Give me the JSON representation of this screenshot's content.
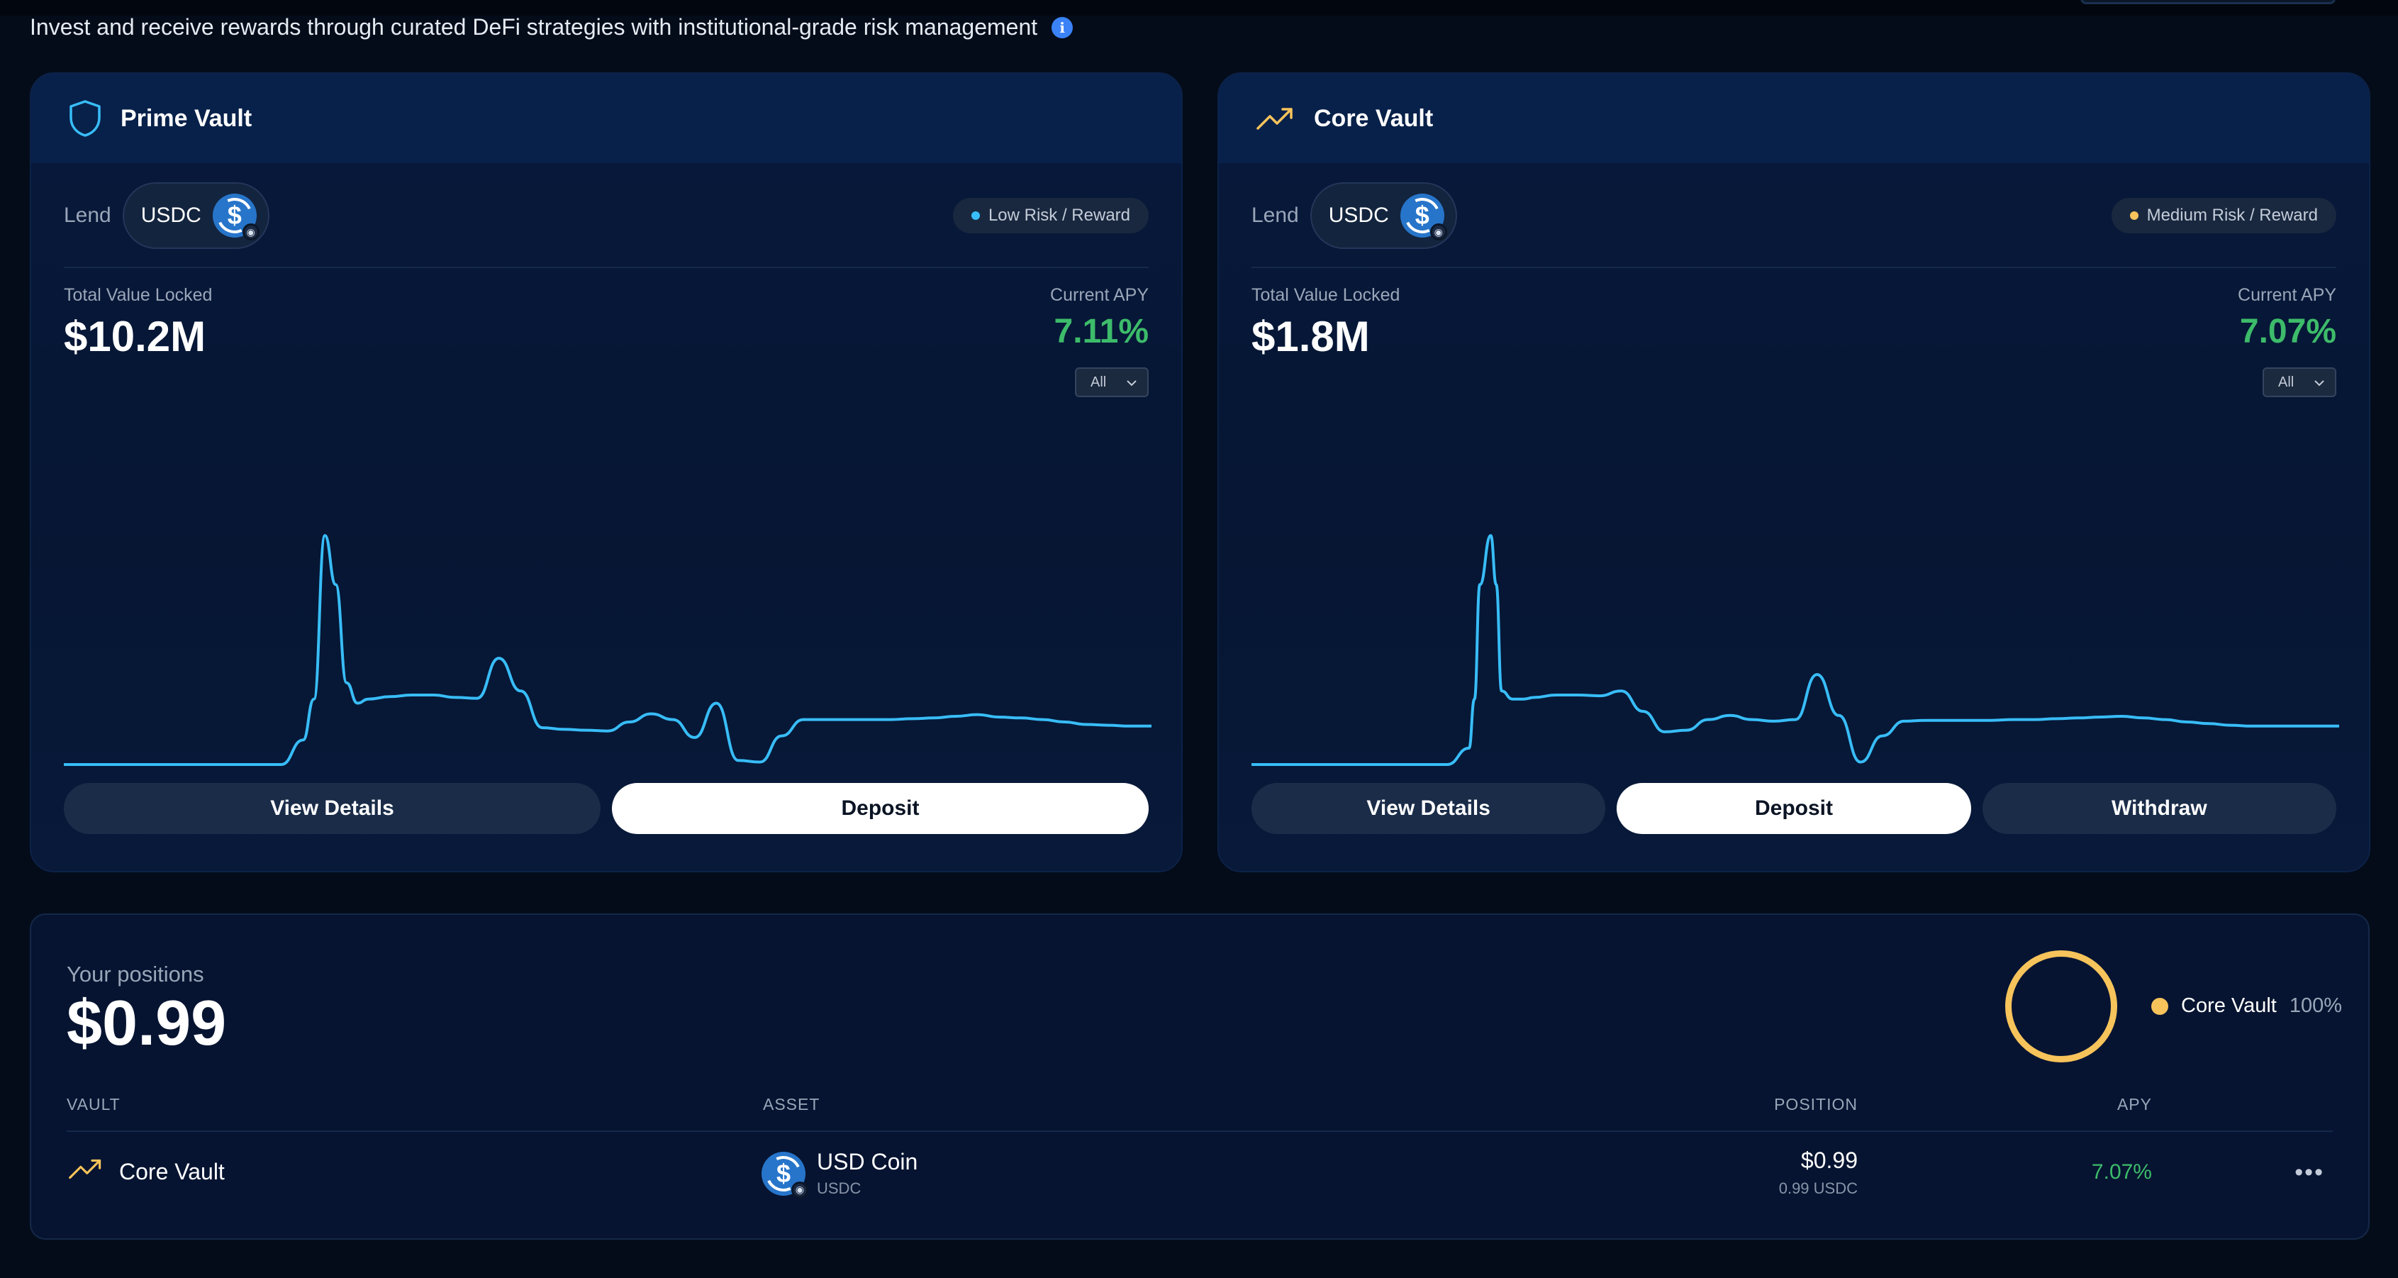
{
  "header": {
    "intro_text": "Invest and receive rewards through curated DeFi strategies with institutional-grade risk management"
  },
  "vaults": [
    {
      "title": "Prime Vault",
      "icon": "shield-icon",
      "lend_label": "Lend",
      "asset": "USDC",
      "risk": "Low Risk / Reward",
      "risk_color": "#38bdf8",
      "tvl_label": "Total Value Locked",
      "tvl": "$10.2M",
      "apy_label": "Current APY",
      "apy": "7.11%",
      "range": "All",
      "buttons": [
        "View Details",
        "Deposit"
      ]
    },
    {
      "title": "Core Vault",
      "icon": "trending-up-icon",
      "lend_label": "Lend",
      "asset": "USDC",
      "risk": "Medium Risk / Reward",
      "risk_color": "#f7c35b",
      "tvl_label": "Total Value Locked",
      "tvl": "$1.8M",
      "apy_label": "Current APY",
      "apy": "7.07%",
      "range": "All",
      "buttons": [
        "View Details",
        "Deposit",
        "Withdraw"
      ]
    }
  ],
  "chart_data": [
    {
      "type": "line",
      "title": "",
      "xlabel": "",
      "ylabel": "",
      "grid": false,
      "color": "#38bdf8",
      "x": [
        0,
        2,
        4,
        6,
        8,
        10,
        12,
        14,
        16,
        18,
        20,
        22,
        23,
        24,
        25,
        26,
        27,
        28,
        30,
        32,
        34,
        36,
        38,
        40,
        42,
        44,
        46,
        48,
        50,
        52,
        54,
        56,
        58,
        60,
        62,
        64,
        66,
        68,
        70,
        72,
        74,
        76,
        78,
        80,
        82,
        84,
        86,
        88,
        90,
        92,
        94,
        96,
        98,
        100
      ],
      "y": [
        0,
        0,
        0,
        0,
        0,
        0,
        0,
        0,
        0,
        0,
        0,
        3,
        8,
        28,
        22,
        10,
        7.5,
        8,
        8.3,
        8.5,
        8.5,
        8.2,
        8.1,
        13,
        9,
        4.5,
        4.3,
        4.2,
        4.1,
        5.2,
        6.2,
        5.5,
        3.3,
        7.5,
        0.5,
        0.3,
        3.5,
        5.5,
        5.5,
        5.5,
        5.5,
        5.5,
        5.6,
        5.7,
        5.9,
        6.1,
        5.8,
        5.7,
        5.5,
        5.2,
        4.9,
        4.8,
        4.7,
        4.7
      ]
    },
    {
      "type": "line",
      "title": "",
      "xlabel": "",
      "ylabel": "",
      "grid": false,
      "color": "#38bdf8",
      "x": [
        0,
        2,
        4,
        6,
        8,
        10,
        12,
        14,
        16,
        18,
        20,
        20.5,
        21,
        22,
        22.5,
        23,
        24,
        25,
        26,
        28,
        30,
        32,
        34,
        36,
        38,
        40,
        42,
        44,
        46,
        48,
        50,
        52,
        54,
        56,
        58,
        60,
        62,
        64,
        66,
        68,
        70,
        72,
        74,
        76,
        78,
        80,
        82,
        84,
        86,
        88,
        90,
        92,
        94,
        96,
        98,
        100
      ],
      "y": [
        0,
        0,
        0,
        0,
        0,
        0,
        0,
        0,
        0,
        0,
        2,
        8,
        22,
        28,
        22,
        9,
        8,
        8,
        8.2,
        8.5,
        8.5,
        8.4,
        9,
        6.5,
        4,
        4.2,
        5.5,
        6,
        5.5,
        5.3,
        5.5,
        11,
        6,
        0.3,
        3.5,
        5.3,
        5.4,
        5.4,
        5.4,
        5.4,
        5.5,
        5.5,
        5.6,
        5.7,
        5.8,
        5.9,
        5.7,
        5.5,
        5.2,
        5.0,
        4.8,
        4.7,
        4.7,
        4.7,
        4.7,
        4.7
      ]
    }
  ],
  "positions": {
    "label": "Your positions",
    "total": "$0.99",
    "legend": {
      "name": "Core Vault",
      "pct": "100%",
      "color": "#f7c35b"
    },
    "columns": {
      "vault": "VAULT",
      "asset": "ASSET",
      "position": "POSITION",
      "apy": "APY"
    },
    "rows": [
      {
        "vault": "Core Vault",
        "vault_icon": "trending-up-icon",
        "asset_name": "USD Coin",
        "asset_symbol": "USDC",
        "position": "$0.99",
        "position_sub": "0.99 USDC",
        "apy": "7.07%",
        "more": "•••"
      }
    ]
  }
}
